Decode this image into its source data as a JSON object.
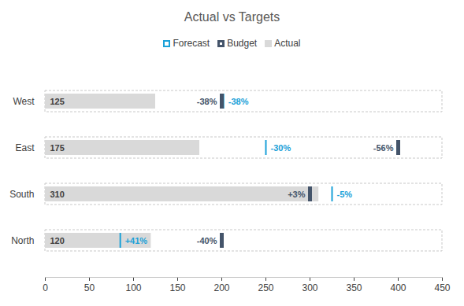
{
  "chart_data": {
    "type": "bullet",
    "title": "Actual vs Targets",
    "orientation": "horizontal",
    "legend": "top",
    "grid": false,
    "categories": [
      "West",
      "East",
      "South",
      "North"
    ],
    "xlim": [
      0,
      450
    ],
    "xticks": [
      0,
      50,
      100,
      150,
      200,
      250,
      300,
      350,
      400,
      450
    ],
    "series": [
      {
        "name": "Forecast",
        "type": "tick",
        "color": "#1ba1d8",
        "marker": "square_open",
        "values": [
          202,
          250,
          325,
          85
        ],
        "variance": [
          -38,
          -30,
          -5,
          41
        ],
        "variance_labels": [
          "-38%",
          "-30%",
          "-5%",
          "+41%"
        ]
      },
      {
        "name": "Budget",
        "type": "tick",
        "color": "#44546a",
        "marker": "square",
        "values": [
          200,
          400,
          300,
          200
        ],
        "variance": [
          -38,
          -56,
          3,
          -40
        ],
        "variance_labels": [
          "-38%",
          "-56%",
          "+3%",
          "-40%"
        ]
      },
      {
        "name": "Actual",
        "type": "bar",
        "color": "#d9d9d9",
        "marker": "square",
        "values": [
          125,
          175,
          310,
          120
        ],
        "data_labels": true
      }
    ]
  }
}
